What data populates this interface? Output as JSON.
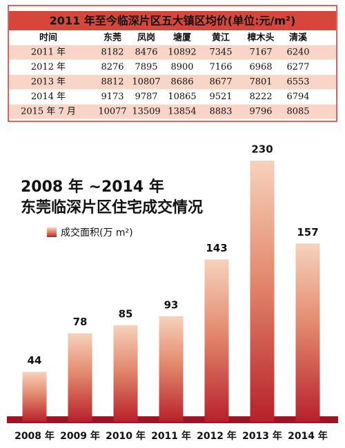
{
  "table": {
    "title": "2011 年至今临深片区五大镇区均价(单位:元/m²)",
    "header": [
      "时间",
      "东莞",
      "凤岗",
      "塘厦",
      "黄江",
      "樟木头",
      "清溪"
    ],
    "rows": [
      [
        "2011 年",
        8182,
        8476,
        10892,
        7345,
        7167,
        6240
      ],
      [
        "2012 年",
        8276,
        7895,
        8900,
        7166,
        6968,
        6277
      ],
      [
        "2013 年",
        8812,
        10807,
        8686,
        8677,
        7801,
        6553
      ],
      [
        "2014 年",
        9173,
        9787,
        10865,
        9521,
        8222,
        6794
      ],
      [
        "2015 年 7 月",
        10077,
        13509,
        13854,
        8883,
        9796,
        8085
      ]
    ]
  },
  "chart_data": {
    "type": "bar",
    "title": "2008 年 ~2014 年",
    "subtitle": "东莞临深片区住宅成交情况",
    "categories": [
      "2008 年",
      "2009 年",
      "2010 年",
      "2011 年",
      "2012 年",
      "2013 年",
      "2014 年"
    ],
    "series": [
      {
        "name": "成交面积(万 m²)",
        "color": "#b8202a",
        "values": [
          44,
          78,
          85,
          93,
          143,
          230,
          157
        ]
      }
    ]
  }
}
